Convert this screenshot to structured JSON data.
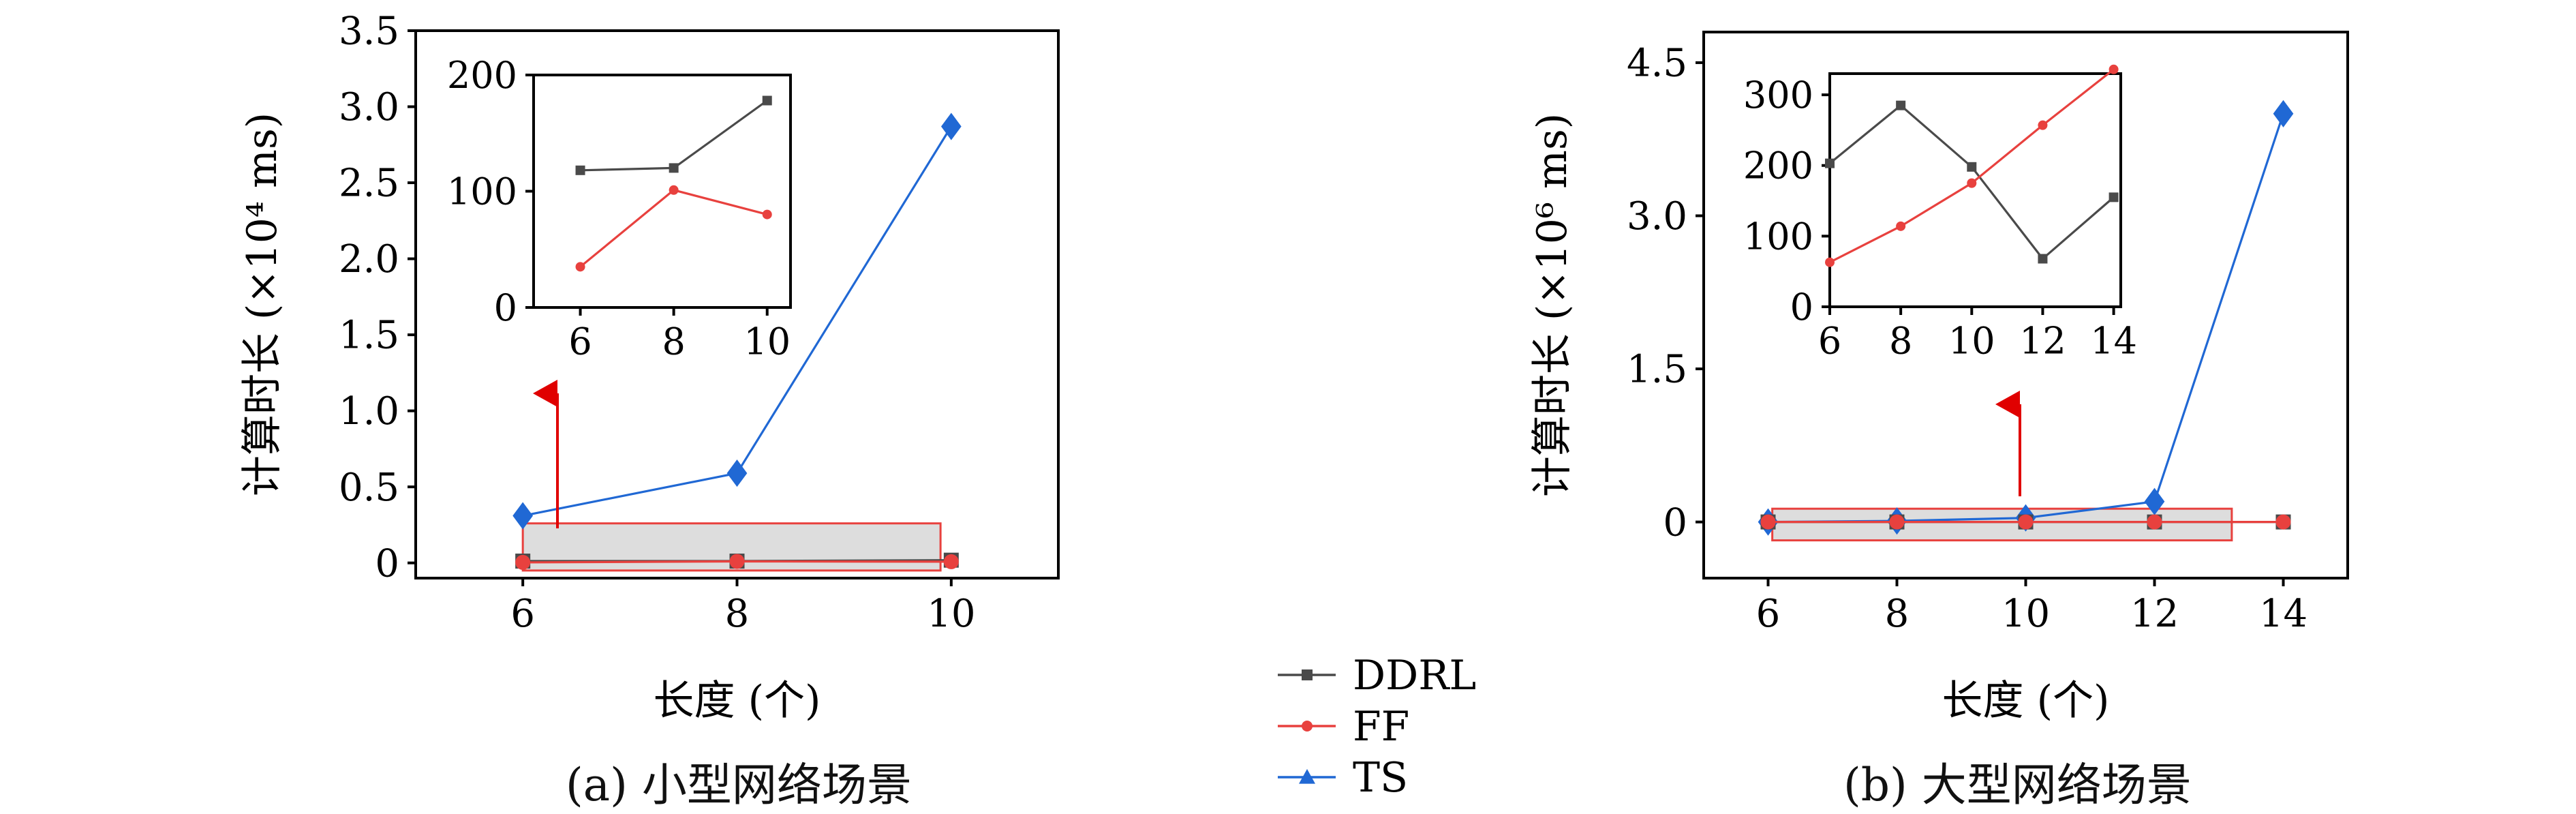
{
  "colors": {
    "DDRL": "#4a4a4a",
    "FF": "#e8413e",
    "TS": "#2068d4",
    "highlight_fill": "#d9d9d9",
    "highlight_stroke": "#e8413e",
    "arrow": "#e00000"
  },
  "legend": [
    {
      "name": "DDRL",
      "marker": "square"
    },
    {
      "name": "FF",
      "marker": "circle"
    },
    {
      "name": "TS",
      "marker": "triangle"
    }
  ],
  "captions": {
    "a": "(a) 小型网络场景",
    "b": "(b) 大型网络场景"
  },
  "chart_data": [
    {
      "id": "a-main",
      "type": "line",
      "xlabel": "长度 (个)",
      "ylabel": "计算时长 (×10⁴ ms)",
      "x": [
        6,
        8,
        10
      ],
      "xlim": [
        5,
        11
      ],
      "ylim": [
        -0.1,
        3.5
      ],
      "xticks": [
        6,
        8,
        10
      ],
      "yticks": [
        0,
        0.5,
        1.0,
        1.5,
        2.0,
        2.5,
        3.0,
        3.5
      ],
      "ytick_labels": [
        "0",
        "0.5",
        "1.0",
        "1.5",
        "2.0",
        "2.5",
        "3.0",
        "3.5"
      ],
      "series": [
        {
          "name": "TS",
          "values": [
            0.31,
            0.59,
            2.87
          ]
        },
        {
          "name": "DDRL",
          "values": [
            0.012,
            0.012,
            0.018
          ]
        },
        {
          "name": "FF",
          "values": [
            0.0035,
            0.01,
            0.008
          ]
        }
      ],
      "highlight": {
        "x": [
          6,
          9.9
        ],
        "y": [
          -0.05,
          0.26
        ]
      }
    },
    {
      "id": "a-inset",
      "type": "line",
      "x": [
        6,
        8,
        10
      ],
      "xlim": [
        5,
        10.5
      ],
      "ylim": [
        0,
        200
      ],
      "xticks": [
        6,
        8,
        10
      ],
      "yticks": [
        0,
        100,
        200
      ],
      "ytick_labels": [
        "0",
        "100",
        "200"
      ],
      "series": [
        {
          "name": "DDRL",
          "values": [
            118,
            120,
            178
          ]
        },
        {
          "name": "FF",
          "values": [
            35,
            101,
            80
          ]
        }
      ]
    },
    {
      "id": "b-main",
      "type": "line",
      "xlabel": "长度 (个)",
      "ylabel": "计算时长 (×10⁶ ms)",
      "x": [
        6,
        8,
        10,
        12,
        14
      ],
      "xlim": [
        5,
        15
      ],
      "ylim": [
        -0.55,
        4.8
      ],
      "xticks": [
        6,
        8,
        10,
        12,
        14
      ],
      "yticks": [
        0,
        1.5,
        3.0,
        4.5
      ],
      "ytick_labels": [
        "0",
        "1.5",
        "3.0",
        "4.5"
      ],
      "series": [
        {
          "name": "TS",
          "values": [
            0.0,
            0.01,
            0.04,
            0.2,
            4.0
          ]
        },
        {
          "name": "DDRL",
          "values": [
            0.0002,
            0.0003,
            0.0002,
            6e-05,
            0.00015
          ]
        },
        {
          "name": "FF",
          "values": [
            6e-05,
            0.00011,
            0.00017,
            0.00026,
            0.00034
          ]
        }
      ],
      "highlight": {
        "x": [
          6.7,
          13.2
        ],
        "y": [
          -0.18,
          0.13
        ]
      }
    },
    {
      "id": "b-inset",
      "type": "line",
      "x": [
        6,
        8,
        10,
        12,
        14
      ],
      "xlim": [
        6,
        14.2
      ],
      "ylim": [
        0,
        330
      ],
      "xticks": [
        6,
        8,
        10,
        12,
        14
      ],
      "yticks": [
        0,
        100,
        200,
        300
      ],
      "ytick_labels": [
        "0",
        "100",
        "200",
        "300"
      ],
      "series": [
        {
          "name": "DDRL",
          "values": [
            203,
            285,
            198,
            68,
            155
          ]
        },
        {
          "name": "FF",
          "values": [
            63,
            114,
            175,
            257,
            336
          ]
        }
      ]
    }
  ]
}
